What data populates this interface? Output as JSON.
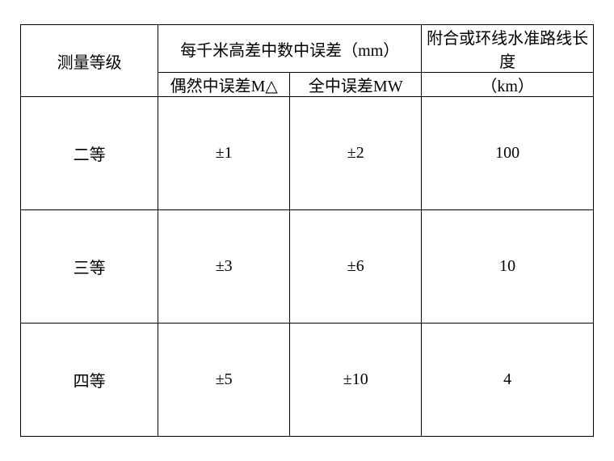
{
  "table": {
    "headers": {
      "grade": "测量等级",
      "error_group": "每千米高差中数中误差（mm）",
      "random_error": "偶然中误差M△",
      "total_error": "全中误差MW",
      "route_length_top": "附合或环线水准路线长度",
      "route_length_unit": "（km）"
    },
    "rows": [
      {
        "grade": "二等",
        "random_error": "±1",
        "total_error": "±2",
        "route_length": "100"
      },
      {
        "grade": "三等",
        "random_error": "±3",
        "total_error": "±6",
        "route_length": "10"
      },
      {
        "grade": "四等",
        "random_error": "±5",
        "total_error": "±10",
        "route_length": "4"
      }
    ],
    "styling": {
      "border_color": "#000000",
      "background_color": "#ffffff",
      "text_color": "#000000",
      "font_size": 20,
      "font_family": "SimSun",
      "border_width": 1.5
    }
  }
}
